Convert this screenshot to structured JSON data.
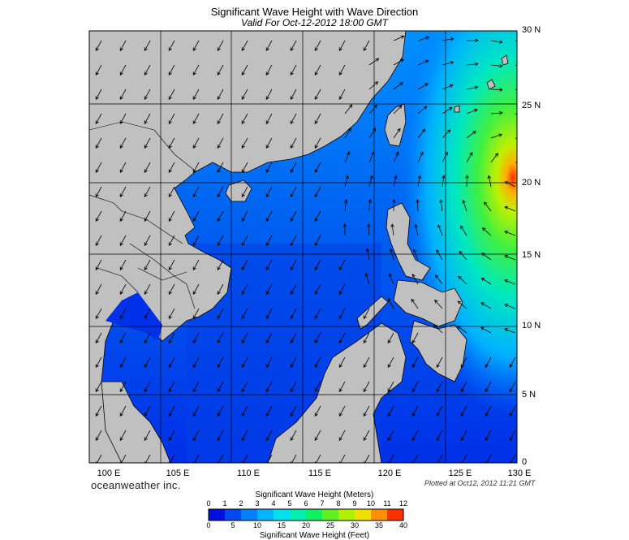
{
  "title": "Significant Wave Height with Wave Direction",
  "subtitle": "Valid For Oct-12-2012 18:00 GMT",
  "brand": "oceanweather inc.",
  "plotted": "Plotted at Oct12, 2012 11:21 GMT",
  "lat_labels": [
    "30 N",
    "25 N",
    "20 N",
    "15 N",
    "10 N",
    "5 N",
    "0"
  ],
  "lon_labels": [
    "100 E",
    "105 E",
    "110 E",
    "115 E",
    "120 E",
    "125 E",
    "130 E"
  ],
  "colorbar": {
    "title_top": "Significant Wave Height (Meters)",
    "title_bottom": "Significant Wave Height (Feet)",
    "meters": [
      "0",
      "1",
      "2",
      "3",
      "4",
      "5",
      "6",
      "7",
      "8",
      "9",
      "10",
      "11",
      "12"
    ],
    "feet": [
      "0",
      "5",
      "10",
      "15",
      "20",
      "25",
      "30",
      "35",
      "40"
    ],
    "colors": [
      "#0010e0",
      "#0048f0",
      "#0080ff",
      "#00b4ff",
      "#00e0f0",
      "#00f0b0",
      "#10f060",
      "#60f020",
      "#b0f000",
      "#f0e000",
      "#ff9000",
      "#ff3000"
    ]
  },
  "colors": {
    "land": "#c0c0c0",
    "grid": "#000000",
    "arrow": "#000000"
  }
}
